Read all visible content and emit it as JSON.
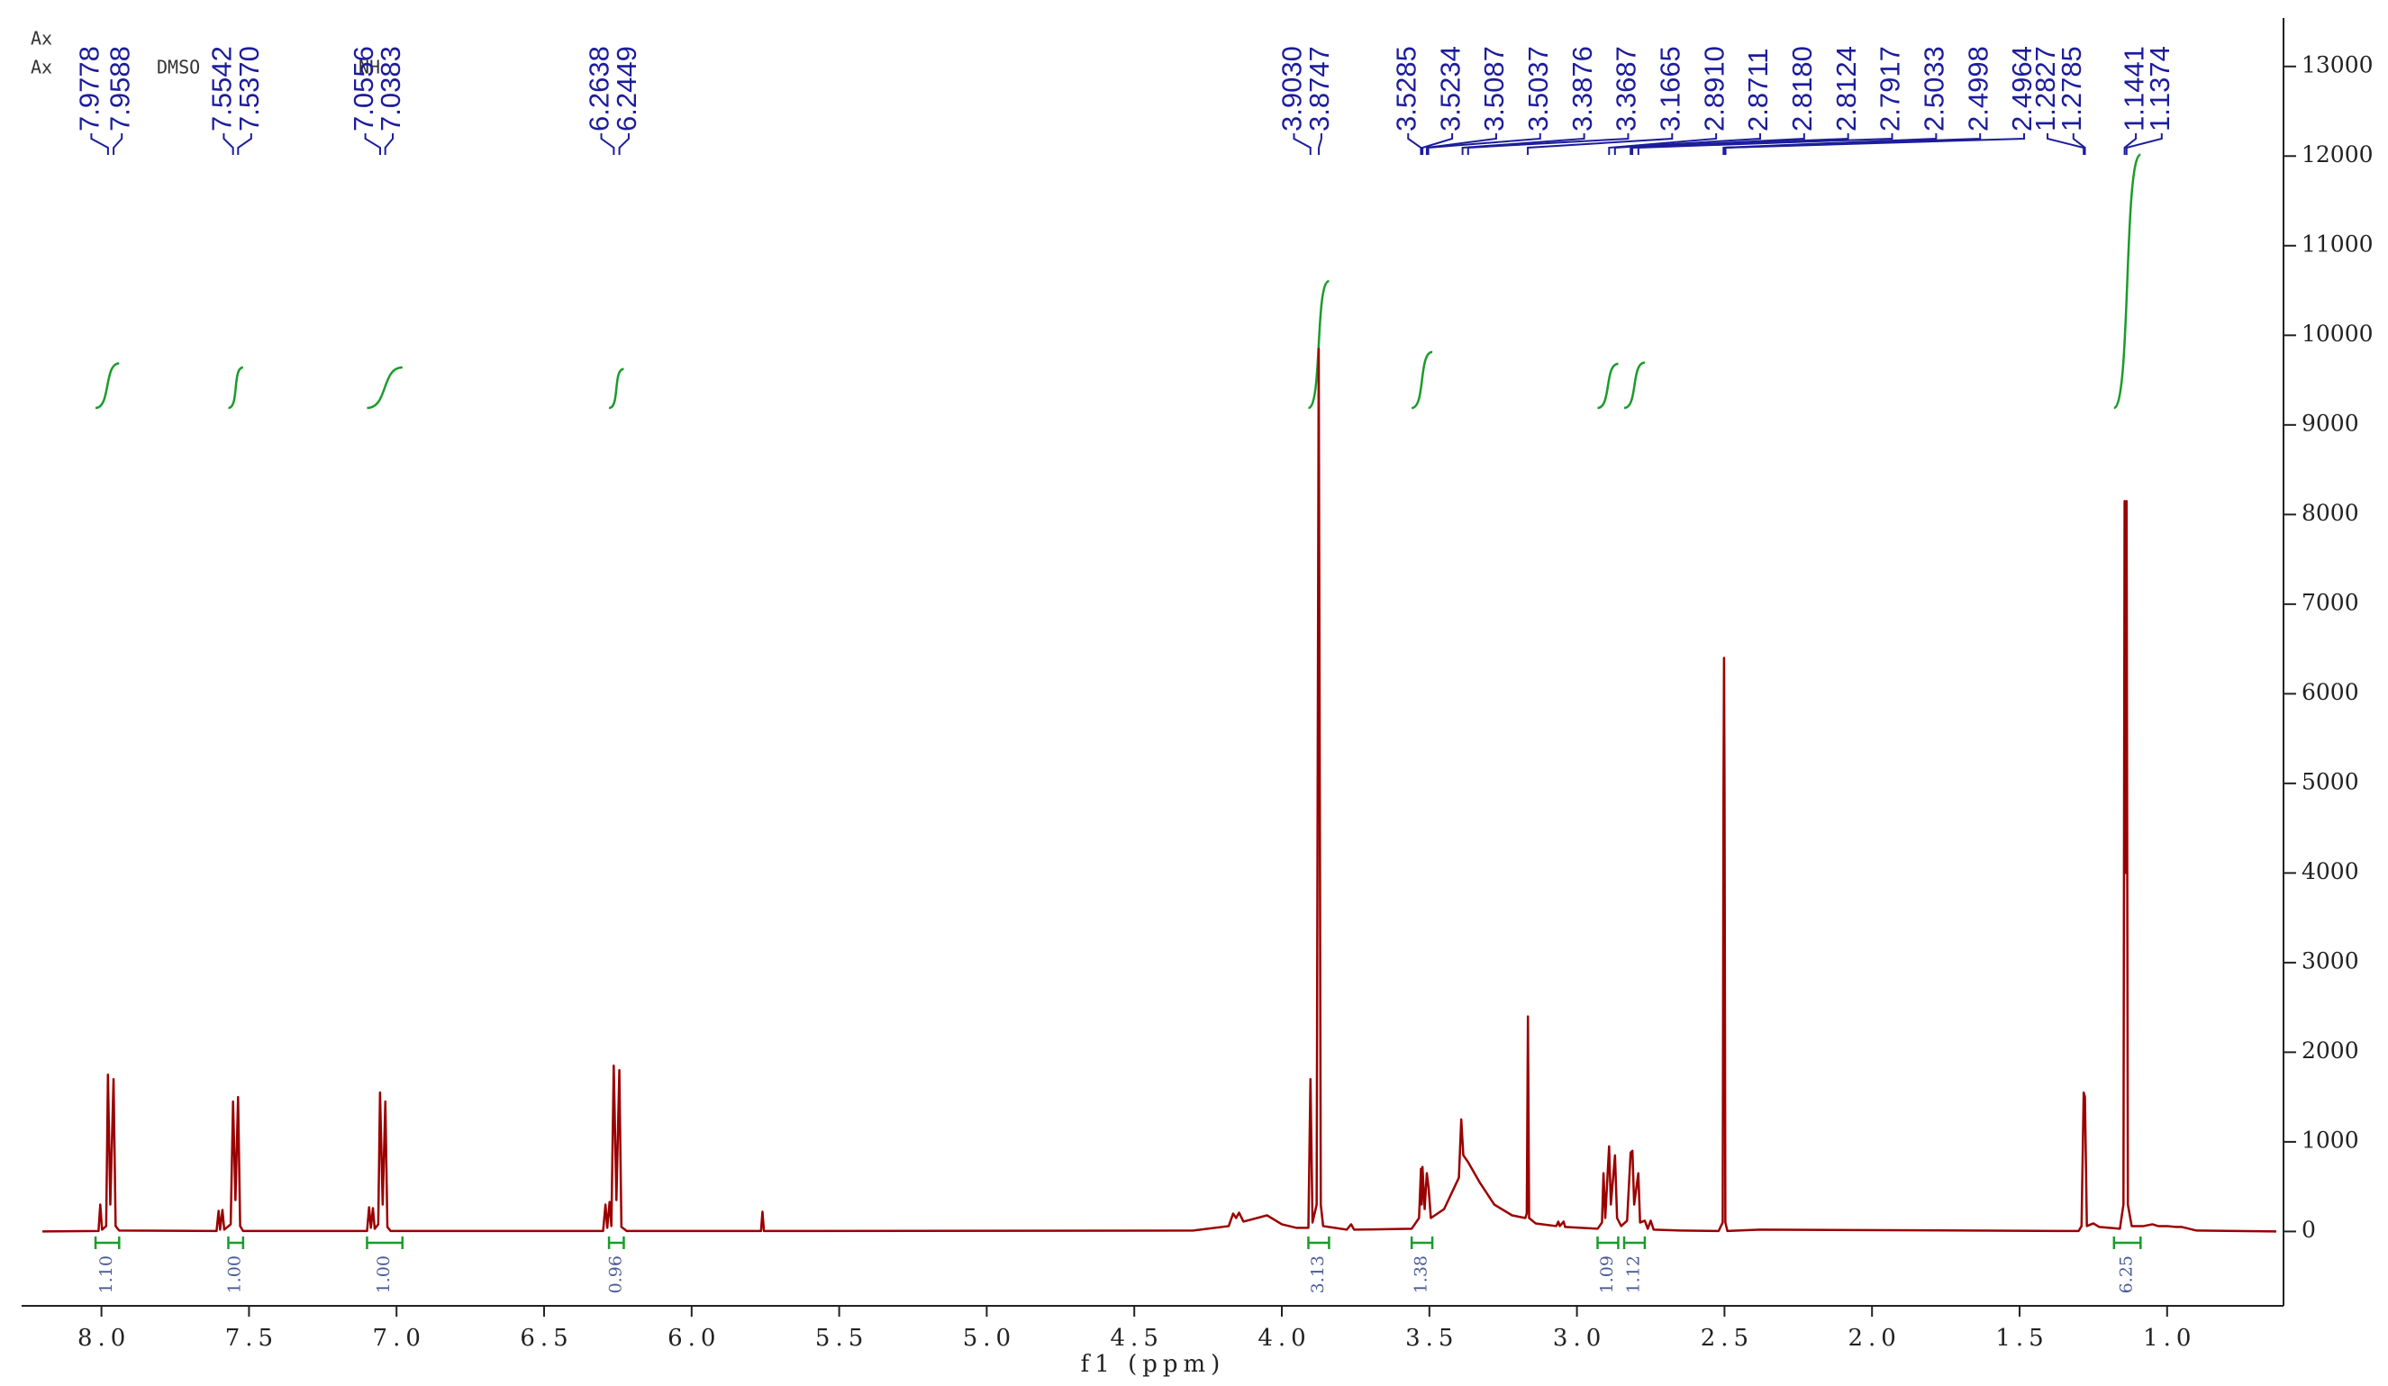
{
  "chart_data": {
    "type": "line",
    "color": "#9b0000",
    "x_label": "f1 (ppm)",
    "annotations": [
      "Ax",
      "Ax",
      "DMSO",
      "NH"
    ],
    "peak_labels": [
      "7.9778",
      "7.9588",
      "7.5542",
      "7.5370",
      "7.0556",
      "7.0383",
      "6.2638",
      "6.2449",
      "3.9030",
      "3.8747",
      "3.5285",
      "3.5234",
      "3.5087",
      "3.5037",
      "3.3876",
      "3.3687",
      "3.1665",
      "2.8910",
      "2.8711",
      "2.8180",
      "2.8124",
      "2.7917",
      "2.5033",
      "2.4998",
      "2.4964",
      "1.2827",
      "1.2785",
      "1.1441",
      "1.1374"
    ],
    "integrals": {
      "ranges": [
        [
          8.02,
          7.94
        ],
        [
          7.57,
          7.52
        ],
        [
          7.1,
          6.98
        ],
        [
          6.28,
          6.23
        ],
        [
          3.91,
          3.84
        ],
        [
          3.56,
          3.49
        ],
        [
          2.93,
          2.86
        ],
        [
          2.84,
          2.77
        ],
        [
          1.18,
          1.09
        ]
      ],
      "values": [
        1.1,
        1,
        1,
        0.96,
        3.13,
        1.38,
        1.09,
        1.12,
        6.25
      ],
      "value_labels": [
        "1.10",
        "1.00",
        "1.00",
        "0.96",
        "3.13",
        "1.38",
        "1.09",
        "1.12",
        "6.25"
      ]
    },
    "x": [
      8.2,
      8.01,
      8.004,
      7.998,
      7.984,
      7.978,
      7.97,
      7.959,
      7.952,
      7.94,
      7.61,
      7.603,
      7.598,
      7.59,
      7.584,
      7.562,
      7.554,
      7.546,
      7.537,
      7.53,
      7.52,
      7.1,
      7.093,
      7.087,
      7.08,
      7.074,
      7.062,
      7.056,
      7.047,
      7.038,
      7.031,
      7.02,
      6.3,
      6.292,
      6.286,
      6.278,
      6.272,
      6.264,
      6.255,
      6.245,
      6.238,
      6.22,
      5.765,
      5.76,
      5.755,
      4.3,
      4.18,
      4.165,
      4.155,
      4.145,
      4.13,
      4.05,
      4.0,
      3.95,
      3.91,
      3.903,
      3.896,
      3.882,
      3.875,
      3.868,
      3.86,
      3.78,
      3.765,
      3.755,
      3.56,
      3.535,
      3.5285,
      3.526,
      3.5234,
      3.516,
      3.5087,
      3.503,
      3.495,
      3.45,
      3.4,
      3.392,
      3.385,
      3.37,
      3.33,
      3.28,
      3.22,
      3.175,
      3.17,
      3.166,
      3.162,
      3.14,
      3.07,
      3.063,
      3.058,
      3.045,
      3.04,
      2.93,
      2.915,
      2.91,
      2.904,
      2.891,
      2.885,
      2.871,
      2.864,
      2.85,
      2.83,
      2.818,
      2.812,
      2.806,
      2.792,
      2.786,
      2.77,
      2.76,
      2.75,
      2.74,
      2.65,
      2.52,
      2.506,
      2.5033,
      2.5015,
      2.4998,
      2.497,
      2.49,
      2.38,
      1.3,
      1.29,
      1.2827,
      1.2785,
      1.272,
      1.25,
      1.23,
      1.16,
      1.148,
      1.1441,
      1.1405,
      1.1374,
      1.133,
      1.12,
      1.08,
      1.05,
      1.03,
      1.0,
      0.97,
      0.95,
      0.9,
      0.63
    ],
    "values": [
      0,
      5,
      300,
      20,
      60,
      1750,
      300,
      1700,
      60,
      10,
      5,
      230,
      20,
      240,
      20,
      80,
      1450,
      350,
      1500,
      60,
      5,
      5,
      270,
      40,
      260,
      30,
      80,
      1550,
      300,
      1450,
      50,
      5,
      5,
      300,
      40,
      330,
      60,
      1850,
      350,
      1800,
      50,
      5,
      5,
      220,
      5,
      10,
      60,
      200,
      150,
      210,
      110,
      180,
      80,
      40,
      40,
      1700,
      100,
      300,
      9850,
      300,
      60,
      20,
      80,
      20,
      30,
      150,
      700,
      300,
      720,
      250,
      650,
      500,
      150,
      250,
      600,
      1250,
      850,
      780,
      550,
      300,
      180,
      150,
      200,
      2400,
      150,
      90,
      60,
      110,
      60,
      110,
      50,
      30,
      100,
      650,
      150,
      950,
      300,
      850,
      150,
      60,
      120,
      880,
      900,
      300,
      650,
      100,
      120,
      30,
      120,
      20,
      10,
      5,
      100,
      4900,
      6400,
      4900,
      100,
      5,
      20,
      5,
      60,
      1550,
      1500,
      60,
      90,
      50,
      30,
      300,
      8150,
      4000,
      8150,
      300,
      60,
      60,
      80,
      60,
      60,
      50,
      50,
      10,
      0
    ],
    "xlim": [
      8.24,
      0.63
    ],
    "ylim": [
      -830,
      13440
    ],
    "xticks": [
      {
        "value": 8,
        "label": "8.0"
      },
      7.5,
      {
        "value": 7,
        "label": "7.0"
      },
      6.5,
      {
        "value": 6,
        "label": "6.0"
      },
      5.5,
      {
        "value": 5,
        "label": "5.0"
      },
      4.5,
      {
        "value": 4,
        "label": "4.0"
      },
      3.5,
      {
        "value": 3,
        "label": "3.0"
      },
      2.5,
      {
        "value": 2,
        "label": "2.0"
      },
      1.5,
      {
        "value": 1,
        "label": "1.0"
      }
    ],
    "yticks": [
      0,
      1000,
      2000,
      3000,
      4000,
      5000,
      6000,
      7000,
      8000,
      9000,
      10000,
      11000,
      12000,
      13000
    ]
  }
}
